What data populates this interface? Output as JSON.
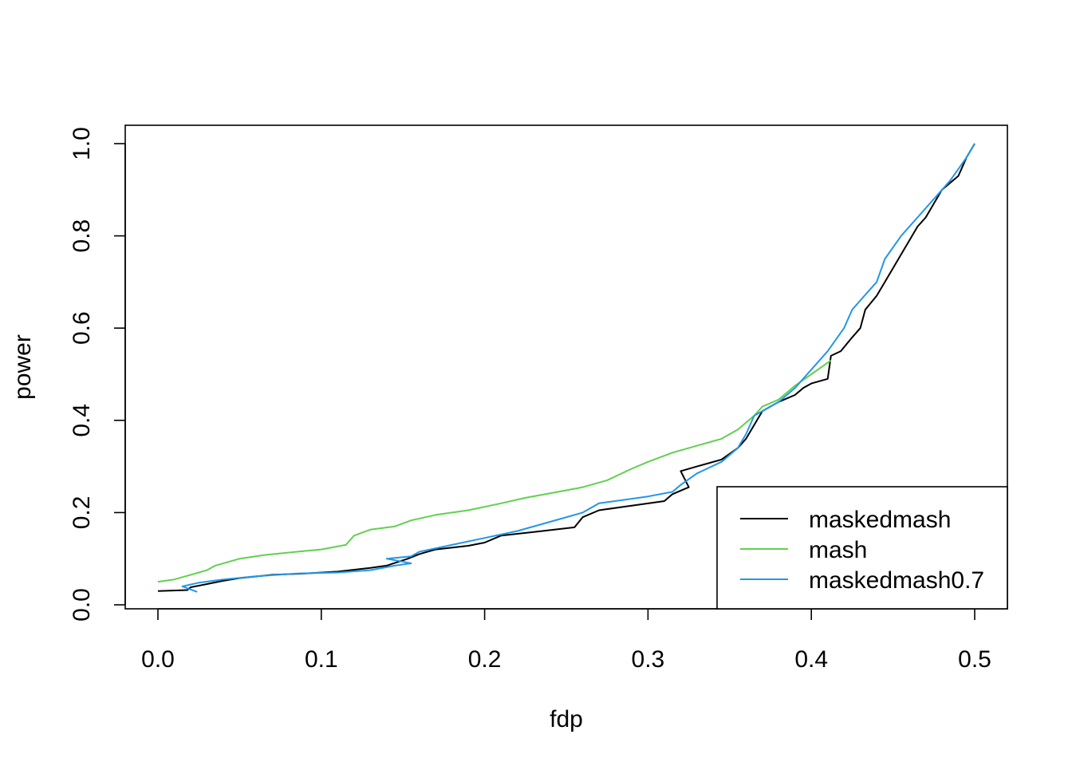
{
  "chart_data": {
    "type": "line",
    "title": "",
    "xlabel": "fdp",
    "ylabel": "power",
    "xlim": [
      0.0,
      0.5
    ],
    "ylim": [
      0.0,
      1.0
    ],
    "x_ticks": [
      "0.0",
      "0.1",
      "0.2",
      "0.3",
      "0.4",
      "0.5"
    ],
    "y_ticks": [
      "0.0",
      "0.2",
      "0.4",
      "0.6",
      "0.8",
      "1.0"
    ],
    "grid": false,
    "legend_position": "bottom-right",
    "series": [
      {
        "name": "maskedmash",
        "color": "#000000",
        "points": [
          [
            0.0,
            0.03
          ],
          [
            0.018,
            0.032
          ],
          [
            0.02,
            0.038
          ],
          [
            0.03,
            0.045
          ],
          [
            0.04,
            0.052
          ],
          [
            0.05,
            0.058
          ],
          [
            0.07,
            0.065
          ],
          [
            0.09,
            0.068
          ],
          [
            0.11,
            0.072
          ],
          [
            0.13,
            0.08
          ],
          [
            0.14,
            0.085
          ],
          [
            0.153,
            0.1
          ],
          [
            0.16,
            0.11
          ],
          [
            0.17,
            0.12
          ],
          [
            0.19,
            0.128
          ],
          [
            0.2,
            0.135
          ],
          [
            0.21,
            0.15
          ],
          [
            0.23,
            0.158
          ],
          [
            0.255,
            0.168
          ],
          [
            0.26,
            0.19
          ],
          [
            0.27,
            0.205
          ],
          [
            0.29,
            0.215
          ],
          [
            0.31,
            0.225
          ],
          [
            0.315,
            0.24
          ],
          [
            0.325,
            0.255
          ],
          [
            0.32,
            0.29
          ],
          [
            0.33,
            0.3
          ],
          [
            0.345,
            0.315
          ],
          [
            0.355,
            0.34
          ],
          [
            0.36,
            0.36
          ],
          [
            0.37,
            0.42
          ],
          [
            0.38,
            0.44
          ],
          [
            0.39,
            0.455
          ],
          [
            0.395,
            0.47
          ],
          [
            0.4,
            0.48
          ],
          [
            0.41,
            0.49
          ],
          [
            0.412,
            0.54
          ],
          [
            0.418,
            0.55
          ],
          [
            0.425,
            0.58
          ],
          [
            0.43,
            0.6
          ],
          [
            0.433,
            0.64
          ],
          [
            0.44,
            0.67
          ],
          [
            0.445,
            0.7
          ],
          [
            0.45,
            0.73
          ],
          [
            0.455,
            0.76
          ],
          [
            0.46,
            0.79
          ],
          [
            0.465,
            0.82
          ],
          [
            0.47,
            0.84
          ],
          [
            0.475,
            0.87
          ],
          [
            0.48,
            0.9
          ],
          [
            0.49,
            0.93
          ],
          [
            0.495,
            0.97
          ],
          [
            0.5,
            1.0
          ]
        ]
      },
      {
        "name": "mash",
        "color": "#61D04F",
        "points": [
          [
            0.0,
            0.05
          ],
          [
            0.01,
            0.055
          ],
          [
            0.02,
            0.065
          ],
          [
            0.03,
            0.075
          ],
          [
            0.035,
            0.085
          ],
          [
            0.05,
            0.1
          ],
          [
            0.065,
            0.108
          ],
          [
            0.085,
            0.115
          ],
          [
            0.1,
            0.12
          ],
          [
            0.115,
            0.13
          ],
          [
            0.12,
            0.15
          ],
          [
            0.13,
            0.163
          ],
          [
            0.145,
            0.17
          ],
          [
            0.155,
            0.183
          ],
          [
            0.17,
            0.195
          ],
          [
            0.19,
            0.205
          ],
          [
            0.21,
            0.22
          ],
          [
            0.225,
            0.232
          ],
          [
            0.245,
            0.245
          ],
          [
            0.26,
            0.255
          ],
          [
            0.275,
            0.27
          ],
          [
            0.29,
            0.295
          ],
          [
            0.3,
            0.31
          ],
          [
            0.315,
            0.33
          ],
          [
            0.33,
            0.345
          ],
          [
            0.345,
            0.36
          ],
          [
            0.355,
            0.38
          ],
          [
            0.365,
            0.41
          ],
          [
            0.37,
            0.43
          ],
          [
            0.38,
            0.445
          ],
          [
            0.39,
            0.475
          ],
          [
            0.4,
            0.5
          ],
          [
            0.41,
            0.525
          ],
          [
            0.412,
            0.53
          ]
        ]
      },
      {
        "name": "maskedmash0.7",
        "color": "#2297E6",
        "points": [
          [
            0.024,
            0.028
          ],
          [
            0.015,
            0.04
          ],
          [
            0.025,
            0.048
          ],
          [
            0.04,
            0.055
          ],
          [
            0.06,
            0.062
          ],
          [
            0.085,
            0.068
          ],
          [
            0.11,
            0.07
          ],
          [
            0.13,
            0.075
          ],
          [
            0.145,
            0.085
          ],
          [
            0.155,
            0.09
          ],
          [
            0.14,
            0.1
          ],
          [
            0.155,
            0.105
          ],
          [
            0.16,
            0.115
          ],
          [
            0.18,
            0.13
          ],
          [
            0.2,
            0.145
          ],
          [
            0.22,
            0.16
          ],
          [
            0.24,
            0.18
          ],
          [
            0.26,
            0.2
          ],
          [
            0.27,
            0.22
          ],
          [
            0.3,
            0.235
          ],
          [
            0.315,
            0.245
          ],
          [
            0.32,
            0.26
          ],
          [
            0.33,
            0.285
          ],
          [
            0.345,
            0.31
          ],
          [
            0.355,
            0.34
          ],
          [
            0.36,
            0.37
          ],
          [
            0.365,
            0.41
          ],
          [
            0.38,
            0.44
          ],
          [
            0.39,
            0.47
          ],
          [
            0.4,
            0.51
          ],
          [
            0.41,
            0.55
          ],
          [
            0.42,
            0.6
          ],
          [
            0.425,
            0.64
          ],
          [
            0.43,
            0.66
          ],
          [
            0.44,
            0.7
          ],
          [
            0.445,
            0.75
          ],
          [
            0.455,
            0.8
          ],
          [
            0.465,
            0.84
          ],
          [
            0.475,
            0.88
          ],
          [
            0.485,
            0.92
          ],
          [
            0.495,
            0.97
          ],
          [
            0.5,
            1.0
          ]
        ]
      }
    ]
  }
}
